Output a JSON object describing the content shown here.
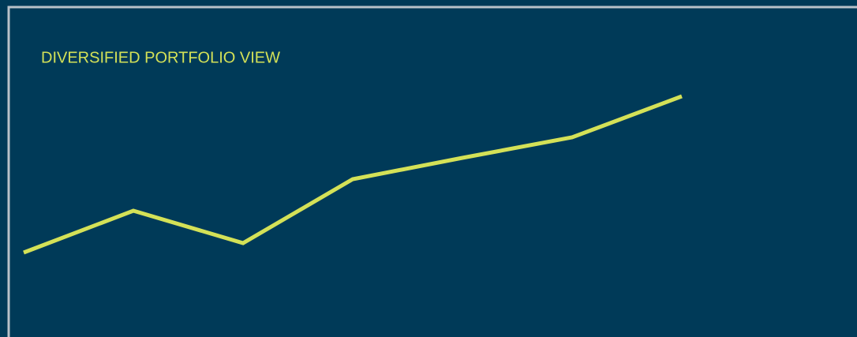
{
  "chart_data": {
    "type": "line",
    "title": "DIVERSIFIED PORTFOLIO VIEW",
    "categories": [
      null,
      null,
      null,
      null,
      null,
      null,
      null
    ],
    "series": [
      {
        "color": "#d4e157",
        "values": [
          107,
          160,
          119,
          200,
          227,
          253,
          305
        ]
      }
    ],
    "ylim": [
      0,
      427
    ]
  }
}
